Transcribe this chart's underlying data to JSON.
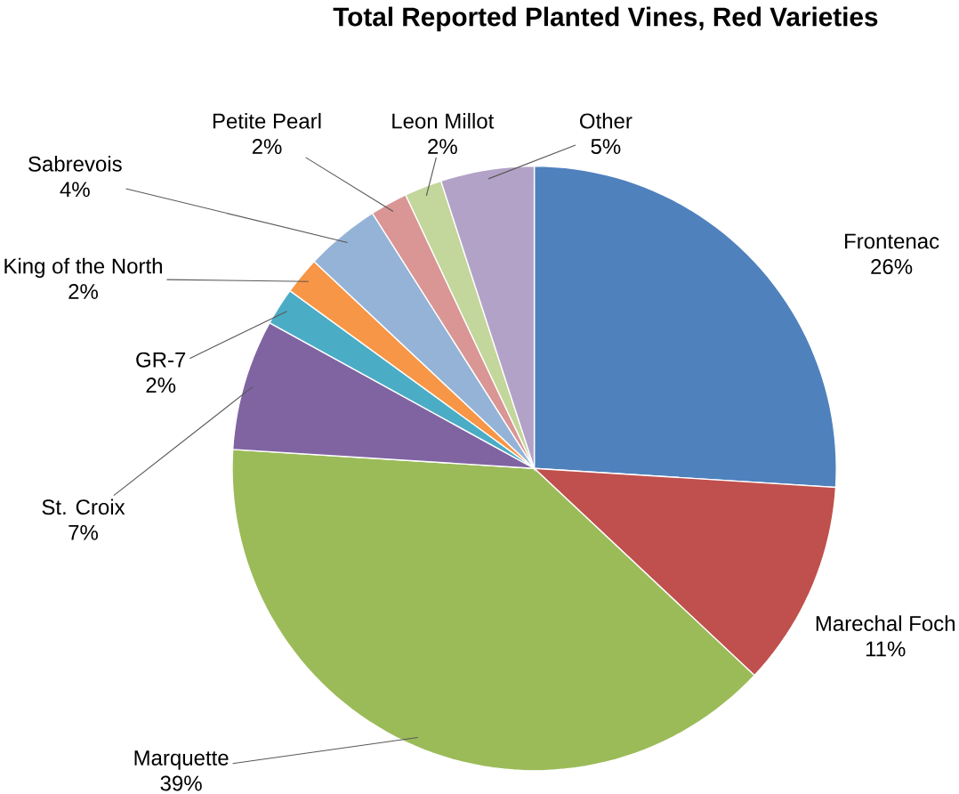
{
  "chart_data": {
    "type": "pie",
    "title": "Total Reported Planted Vines, Red Varieties",
    "categories": [
      "Frontenac",
      "Marechal Foch",
      "Marquette",
      "St. Croix",
      "GR-7",
      "King of the North",
      "Sabrevois",
      "Petite Pearl",
      "Leon Millot",
      "Other"
    ],
    "values": [
      26,
      11,
      39,
      7,
      2,
      2,
      4,
      2,
      2,
      5
    ],
    "value_labels": [
      "26%",
      "11%",
      "39%",
      "7%",
      "2%",
      "2%",
      "4%",
      "2%",
      "2%",
      "5%"
    ],
    "colors": [
      "#4f81bd",
      "#c0504d",
      "#9bbb59",
      "#8064a2",
      "#4bacc6",
      "#f79646",
      "#95b3d7",
      "#d99694",
      "#c3d69b",
      "#b3a2c7"
    ]
  }
}
